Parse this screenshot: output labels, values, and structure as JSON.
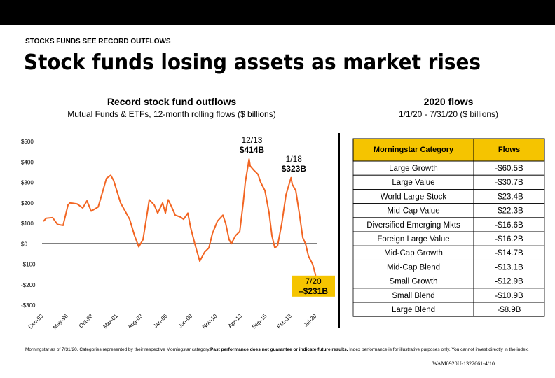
{
  "header": {
    "kicker": "STOCKS FUNDS SEE RECORD OUTFLOWS",
    "title": "Stock funds losing assets as market rises"
  },
  "chart_data": {
    "type": "line",
    "title": "Record stock fund outflows",
    "subtitle": "Mutual Funds & ETFs, 12-month rolling flows ($ billions)",
    "color": "#f26522",
    "x": [
      1993.92,
      1994.19,
      1994.81,
      1995.28,
      1995.83,
      1996.31,
      1996.51,
      1997.19,
      1997.74,
      1998.15,
      1998.56,
      1999.24,
      1999.65,
      2000.05,
      2000.46,
      2000.74,
      2001.42,
      2002.3,
      2002.78,
      2003.19,
      2003.6,
      2004.01,
      2004.21,
      2004.69,
      2005.03,
      2005.51,
      2005.78,
      2006.05,
      2006.39,
      2006.74,
      2007.28,
      2007.55,
      2007.96,
      2008.23,
      2008.64,
      2009.12,
      2009.6,
      2010.01,
      2010.35,
      2010.83,
      2011.37,
      2011.64,
      2011.98,
      2012.19,
      2012.6,
      2013.01,
      2013.35,
      2013.55,
      2013.92,
      2014.03,
      2014.37,
      2014.78,
      2015.05,
      2015.46,
      2015.87,
      2016.14,
      2016.42,
      2016.69,
      2017.1,
      2017.51,
      2018.0,
      2018.12,
      2018.46,
      2018.8,
      2019.14,
      2019.41,
      2019.69,
      2020.1,
      2020.37,
      2020.5
    ],
    "values": [
      110,
      125,
      128,
      95,
      90,
      190,
      200,
      195,
      175,
      210,
      160,
      180,
      250,
      320,
      335,
      310,
      200,
      120,
      40,
      -15,
      20,
      150,
      215,
      190,
      150,
      200,
      150,
      215,
      180,
      140,
      130,
      120,
      150,
      80,
      0,
      -85,
      -40,
      -20,
      50,
      110,
      140,
      100,
      20,
      0,
      40,
      60,
      200,
      300,
      414,
      380,
      360,
      340,
      300,
      260,
      150,
      40,
      -20,
      -10,
      100,
      240,
      323,
      290,
      260,
      150,
      30,
      0,
      -60,
      -100,
      -150,
      -231
    ],
    "value_labels": [
      null,
      null,
      null,
      null,
      null,
      null,
      null,
      null,
      null,
      null,
      null,
      null,
      null,
      null,
      null,
      null,
      null,
      null,
      null,
      null,
      null,
      null,
      null,
      null,
      null,
      null,
      null,
      null,
      null,
      null,
      null,
      null,
      null,
      null,
      null,
      null,
      null,
      null,
      null,
      null,
      null,
      null,
      null,
      null,
      null,
      null,
      null,
      null,
      "$414B",
      null,
      null,
      null,
      null,
      null,
      null,
      null,
      null,
      null,
      null,
      null,
      "$323B",
      null,
      null,
      null,
      null,
      null,
      null,
      null,
      null,
      "–$231B"
    ],
    "date_labels": [
      null,
      null,
      null,
      null,
      null,
      null,
      null,
      null,
      null,
      null,
      null,
      null,
      null,
      null,
      null,
      null,
      null,
      null,
      null,
      null,
      null,
      null,
      null,
      null,
      null,
      null,
      null,
      null,
      null,
      null,
      null,
      null,
      null,
      null,
      null,
      null,
      null,
      null,
      null,
      null,
      null,
      null,
      null,
      null,
      null,
      null,
      null,
      null,
      "12/13",
      null,
      null,
      null,
      null,
      null,
      null,
      null,
      null,
      null,
      null,
      null,
      "1/18",
      null,
      null,
      null,
      null,
      null,
      null,
      null,
      null,
      "7/20"
    ],
    "xlim": [
      1993.92,
      2020.5
    ],
    "xticks": [
      {
        "value": 1993.92,
        "label": "Dec-93"
      },
      {
        "value": 1996.33,
        "label": "May-96"
      },
      {
        "value": 1998.75,
        "label": "Oct-98"
      },
      {
        "value": 2001.17,
        "label": "Mar-01"
      },
      {
        "value": 2003.58,
        "label": "Aug-03"
      },
      {
        "value": 2006.0,
        "label": "Jan-06"
      },
      {
        "value": 2008.42,
        "label": "Jun-08"
      },
      {
        "value": 2010.83,
        "label": "Nov-10"
      },
      {
        "value": 2013.25,
        "label": "Apr-13"
      },
      {
        "value": 2015.67,
        "label": "Sep-15"
      },
      {
        "value": 2018.08,
        "label": "Feb-18"
      },
      {
        "value": 2020.5,
        "label": "Jul-20"
      }
    ],
    "ylim": [
      -300,
      500
    ],
    "yticks": [
      {
        "value": 500,
        "label": "$500"
      },
      {
        "value": 400,
        "label": "$400"
      },
      {
        "value": 300,
        "label": "$300"
      },
      {
        "value": 200,
        "label": "$200"
      },
      {
        "value": 100,
        "label": "$100"
      },
      {
        "value": 0,
        "label": "$0"
      },
      {
        "value": -100,
        "label": "-$100"
      },
      {
        "value": -200,
        "label": "-$200"
      },
      {
        "value": -300,
        "label": "-$300"
      }
    ]
  },
  "table": {
    "title": "2020 flows",
    "subtitle": "1/1/20 - 7/31/20 ($ billions)",
    "columns": [
      "Morningstar Category",
      "Flows"
    ],
    "rows": [
      [
        "Large Growth",
        "-$60.5B"
      ],
      [
        "Large Value",
        "-$30.7B"
      ],
      [
        "World Large Stock",
        "-$23.4B"
      ],
      [
        "Mid-Cap Value",
        "-$22.3B"
      ],
      [
        "Diversified Emerging Mkts",
        "-$16.6B"
      ],
      [
        "Foreign Large Value",
        "-$16.2B"
      ],
      [
        "Mid-Cap Growth",
        "-$14.7B"
      ],
      [
        "Mid-Cap Blend",
        "-$13.1B"
      ],
      [
        "Small Growth",
        "-$12.9B"
      ],
      [
        "Small Blend",
        "-$10.9B"
      ],
      [
        "Large Blend",
        "-$8.9B"
      ]
    ]
  },
  "footer": {
    "note": "Morningstar as of 7/31/20. Categories represented by their respective Morningstar category.",
    "disclaimer": "Past performance does not guarantee or indicate future results.",
    "rest": " Index performance is for illustrative purposes only. You cannot invest directly in the index.",
    "code": "WAM0920U-1322661-4/10"
  }
}
